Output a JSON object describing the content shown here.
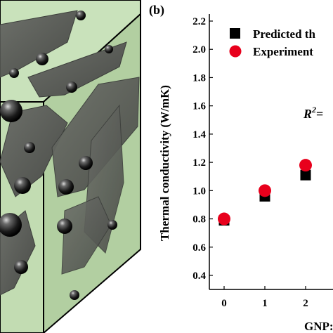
{
  "panel_b_label": "(b)",
  "r2_label": "R",
  "r2_sup": "2",
  "r2_eq": "=",
  "colors": {
    "predicted": "#000000",
    "experimental": "#e8001c",
    "composite_block": "#c2dcb2",
    "flake": "#5a5d58"
  },
  "chart_data": {
    "type": "scatter",
    "xlabel": "GNP:",
    "ylabel": "Thermal conductivity (W/mK)",
    "ylim": [
      0.4,
      2.2
    ],
    "yticks": [
      "0.4",
      "0.6",
      "0.8",
      "1.0",
      "1.2",
      "1.4",
      "1.6",
      "1.8",
      "2.0",
      "2.2"
    ],
    "xticks": [
      "0",
      "1",
      "2"
    ],
    "series": [
      {
        "name": "Predicted th",
        "marker": "square",
        "x": [
          0,
          1,
          2
        ],
        "values": [
          0.79,
          0.96,
          1.11
        ]
      },
      {
        "name": "Experiment",
        "marker": "circle",
        "x": [
          0,
          1,
          2
        ],
        "values": [
          0.8,
          1.0,
          1.18
        ]
      }
    ]
  }
}
